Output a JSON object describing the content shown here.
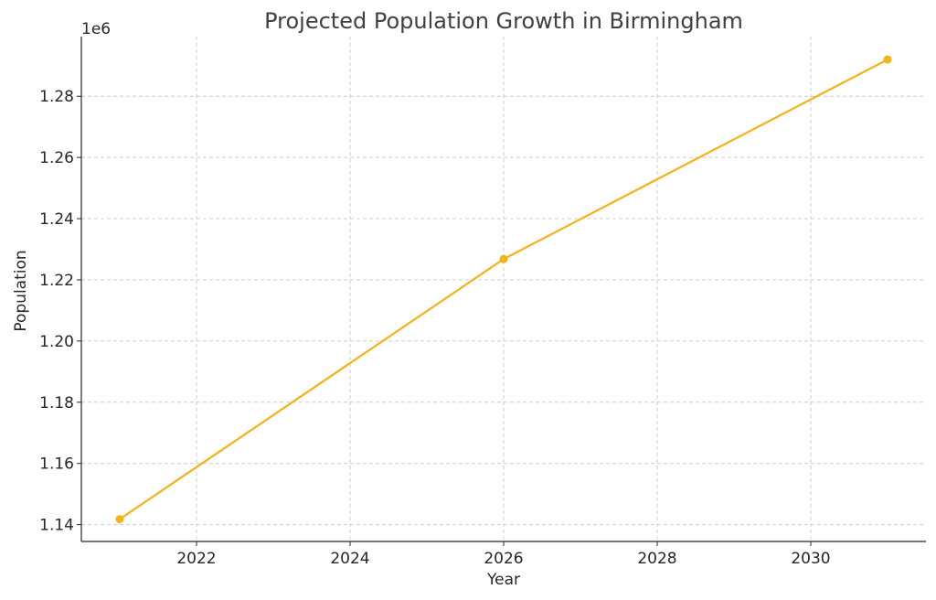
{
  "chart_data": {
    "type": "line",
    "title": "Projected Population Growth in Birmingham",
    "xlabel": "Year",
    "ylabel": "Population",
    "y_offset_label": "1e6",
    "x_ticks": [
      2022,
      2024,
      2026,
      2028,
      2030
    ],
    "x_tick_labels": [
      "2022",
      "2024",
      "2026",
      "2028",
      "2030"
    ],
    "y_ticks": [
      1.14,
      1.16,
      1.18,
      1.2,
      1.22,
      1.24,
      1.26,
      1.28
    ],
    "y_tick_labels": [
      "1.14",
      "1.16",
      "1.18",
      "1.20",
      "1.22",
      "1.24",
      "1.26",
      "1.28"
    ],
    "xlim": [
      2020.5,
      2031.5
    ],
    "ylim": [
      1.1345,
      1.2995
    ],
    "grid": true,
    "series": [
      {
        "x": [
          2021,
          2026,
          2031
        ],
        "y": [
          1.1418,
          1.2268,
          1.292
        ],
        "color": "#f5b21a",
        "marker": "circle"
      }
    ]
  }
}
